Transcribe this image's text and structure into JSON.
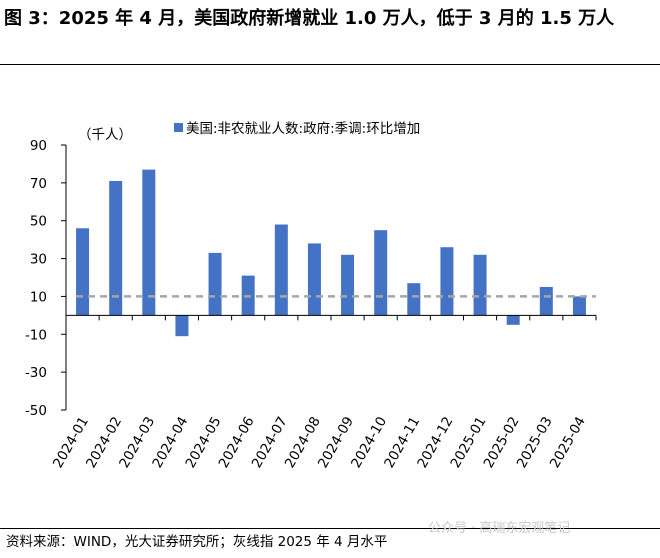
{
  "title": "图 3：2025 年 4 月，美国政府新增就业 1.0 万人，低于 3 月的 1.5 万人",
  "footer": {
    "source": "资料来源：WIND，光大证券研究所；灰线指 2025 年 4 月水平",
    "watermark": "公众号 · 高瑞东宏观笔记"
  },
  "colors": {
    "bar": "#4472c4",
    "reference_line": "#a6a6a6",
    "axis": "#000000"
  },
  "chart_data": {
    "type": "bar",
    "unit_label": "（千人）",
    "legend": "美国:非农就业人数:政府:季调:环比增加",
    "legend_position": "top",
    "categories": [
      "2024-01",
      "2024-02",
      "2024-03",
      "2024-04",
      "2024-05",
      "2024-06",
      "2024-07",
      "2024-08",
      "2024-09",
      "2024-10",
      "2024-11",
      "2024-12",
      "2025-01",
      "2025-02",
      "2025-03",
      "2025-04"
    ],
    "series": [
      {
        "name": "美国:非农就业人数:政府:季调:环比增加",
        "values": [
          46,
          71,
          77,
          -11,
          33,
          21,
          48,
          38,
          32,
          45,
          17,
          36,
          32,
          -5,
          15,
          10
        ]
      }
    ],
    "reference_line": {
      "value": 10,
      "style": "dashed",
      "meaning": "2025 年 4 月水平"
    },
    "ylim": [
      -50,
      90
    ],
    "yticks": [
      90,
      70,
      50,
      30,
      10,
      -10,
      -30,
      -50
    ],
    "ytick_labels": [
      "90",
      "70",
      "50",
      "30",
      "10",
      "-10",
      "-30",
      "-50"
    ],
    "grid": false
  }
}
